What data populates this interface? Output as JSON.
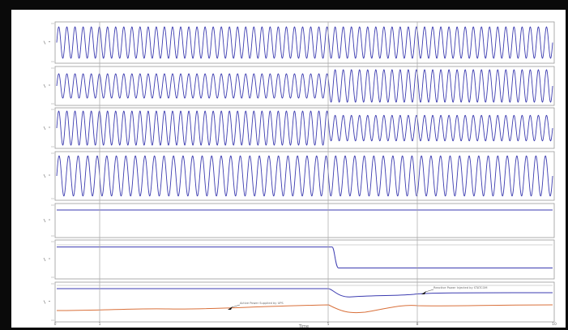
{
  "chart_data": {
    "type": "line",
    "style": "stacked oscilloscope-style waveform panels",
    "xlabel": "Time",
    "x_tick_labels": [
      "0",
      "1",
      "5",
      "8",
      "10"
    ],
    "colors": {
      "waveform": "#3b3bb0",
      "response": "#d9703a",
      "grid": "#a8a8a8",
      "frame": "#0a0a0a"
    },
    "panels": [
      {
        "id": "p1",
        "kind": "sine",
        "cycles_total": 61,
        "amp_before": 0.9,
        "amp_after": 0.9,
        "step_at_fraction": 0.55
      },
      {
        "id": "p2",
        "kind": "sine",
        "cycles_total": 61,
        "amp_before": 0.75,
        "amp_after": 1.0,
        "step_at_fraction": 0.55
      },
      {
        "id": "p3",
        "kind": "sine",
        "cycles_total": 61,
        "amp_before": 1.0,
        "amp_after": 0.75,
        "step_at_fraction": 0.55
      },
      {
        "id": "p4",
        "kind": "sine",
        "cycles_total": 52,
        "amp_before": 0.95,
        "amp_after": 0.95,
        "step_at_fraction": 0.55
      },
      {
        "id": "p5",
        "kind": "flat",
        "level": 0.5
      },
      {
        "id": "p6",
        "kind": "step",
        "level_before": 0.82,
        "level_after": 0.28,
        "step_at_fraction": 0.555
      },
      {
        "id": "p7",
        "kind": "response"
      }
    ],
    "annotations": [
      {
        "panel": "p7",
        "text": "Reactive Power Injected by STATCOM"
      },
      {
        "panel": "p7",
        "text": "Active Power Supplied by UPS"
      }
    ]
  }
}
